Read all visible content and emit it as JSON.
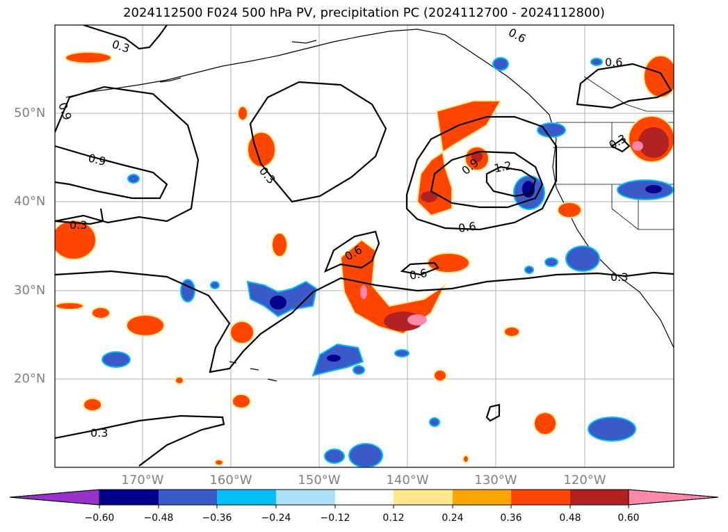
{
  "title": "2024112500 F024 500 hPa PV, precipitation PC (2024112700 - 2024112800)",
  "lat_labels": [
    "50°N",
    "40°N",
    "30°N",
    "20°N"
  ],
  "lon_labels": [
    "170°W",
    "160°W",
    "150°W",
    "140°W",
    "130°W",
    "120°W"
  ],
  "contour_labels": [
    "0.3",
    "0.6",
    "0.6",
    "0.9",
    "0.3",
    "0.3",
    "0.3",
    "0.3",
    "0.9",
    "1.2",
    "0.6",
    "0.6",
    "0.6",
    "0.6",
    "0.3",
    "0.3"
  ],
  "colorbar": {
    "ticks": [
      "−0.60",
      "−0.48",
      "−0.36",
      "−0.24",
      "−0.12",
      "0.12",
      "0.24",
      "0.36",
      "0.48",
      "0.60"
    ],
    "colors": [
      "#9932CC",
      "#00008B",
      "#3A5BC7",
      "#00BFFF",
      "#ADE1F8",
      "#FFFFFF",
      "#FFE88C",
      "#FFA500",
      "#FF4500",
      "#B22222",
      "#FF88AA"
    ]
  }
}
